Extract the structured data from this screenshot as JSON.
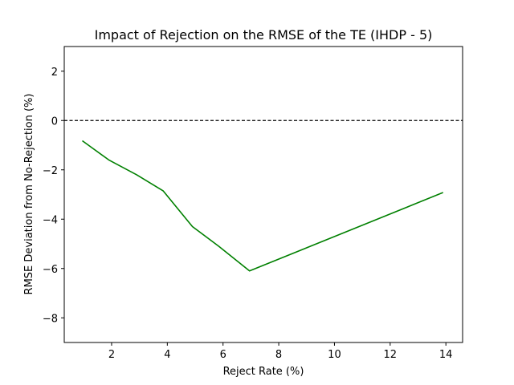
{
  "chart_data": {
    "type": "line",
    "title": "Impact of Rejection on the RMSE of the TE (IHDP - 5)",
    "xlabel": "Reject Rate (%)",
    "ylabel": "RMSE Deviation from No-Rejection (%)",
    "xlim": [
      0.3,
      14.6
    ],
    "ylim": [
      -9,
      3
    ],
    "xticks": [
      2,
      4,
      6,
      8,
      10,
      12,
      14
    ],
    "xtick_labels": [
      "2",
      "4",
      "6",
      "8",
      "10",
      "12",
      "14"
    ],
    "yticks": [
      2,
      0,
      -2,
      -4,
      -6,
      -8
    ],
    "ytick_labels": [
      "2",
      "0",
      "−2",
      "−4",
      "−6",
      "−8"
    ],
    "reference_line": {
      "y": 0,
      "style": "dashed",
      "color": "#000000"
    },
    "grid": false,
    "series": [
      {
        "color": "#008000",
        "x": [
          0.95,
          1.9,
          2.9,
          3.85,
          4.9,
          5.85,
          6.95,
          13.9
        ],
        "y": [
          -0.82,
          -1.6,
          -2.2,
          -2.85,
          -4.3,
          -5.1,
          -6.1,
          -2.92
        ]
      }
    ]
  }
}
